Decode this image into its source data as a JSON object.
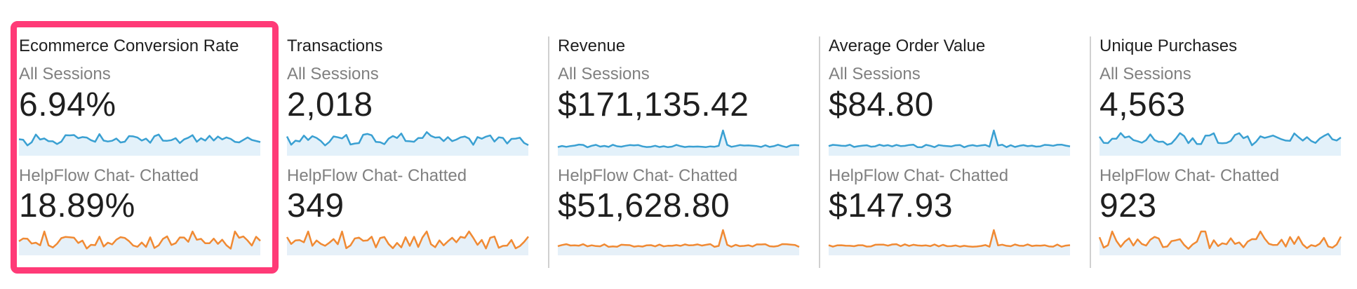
{
  "metrics": [
    {
      "title": "Ecommerce Conversion Rate",
      "selected": true,
      "segments": [
        {
          "name": "All Sessions",
          "value": "6.94%"
        },
        {
          "name": "HelpFlow Chat- Chatted",
          "value": "18.89%"
        }
      ]
    },
    {
      "title": "Transactions",
      "selected": false,
      "segments": [
        {
          "name": "All Sessions",
          "value": "2,018"
        },
        {
          "name": "HelpFlow Chat- Chatted",
          "value": "349"
        }
      ]
    },
    {
      "title": "Revenue",
      "selected": false,
      "segments": [
        {
          "name": "All Sessions",
          "value": "$171,135.42"
        },
        {
          "name": "HelpFlow Chat- Chatted",
          "value": "$51,628.80"
        }
      ]
    },
    {
      "title": "Average Order Value",
      "selected": false,
      "segments": [
        {
          "name": "All Sessions",
          "value": "$84.80"
        },
        {
          "name": "HelpFlow Chat- Chatted",
          "value": "$147.93"
        }
      ]
    },
    {
      "title": "Unique Purchases",
      "selected": false,
      "segments": [
        {
          "name": "All Sessions",
          "value": "4,563"
        },
        {
          "name": "HelpFlow Chat- Chatted",
          "value": "923"
        }
      ]
    }
  ],
  "colors": {
    "all_sessions_line": "#3aa0d2",
    "all_sessions_fill": "#e3f1fa",
    "helpflow_line": "#f08a34",
    "helpflow_fill": "#e6f0f8",
    "selected_border": "#ff3a77",
    "divider": "#d0d0d0"
  }
}
